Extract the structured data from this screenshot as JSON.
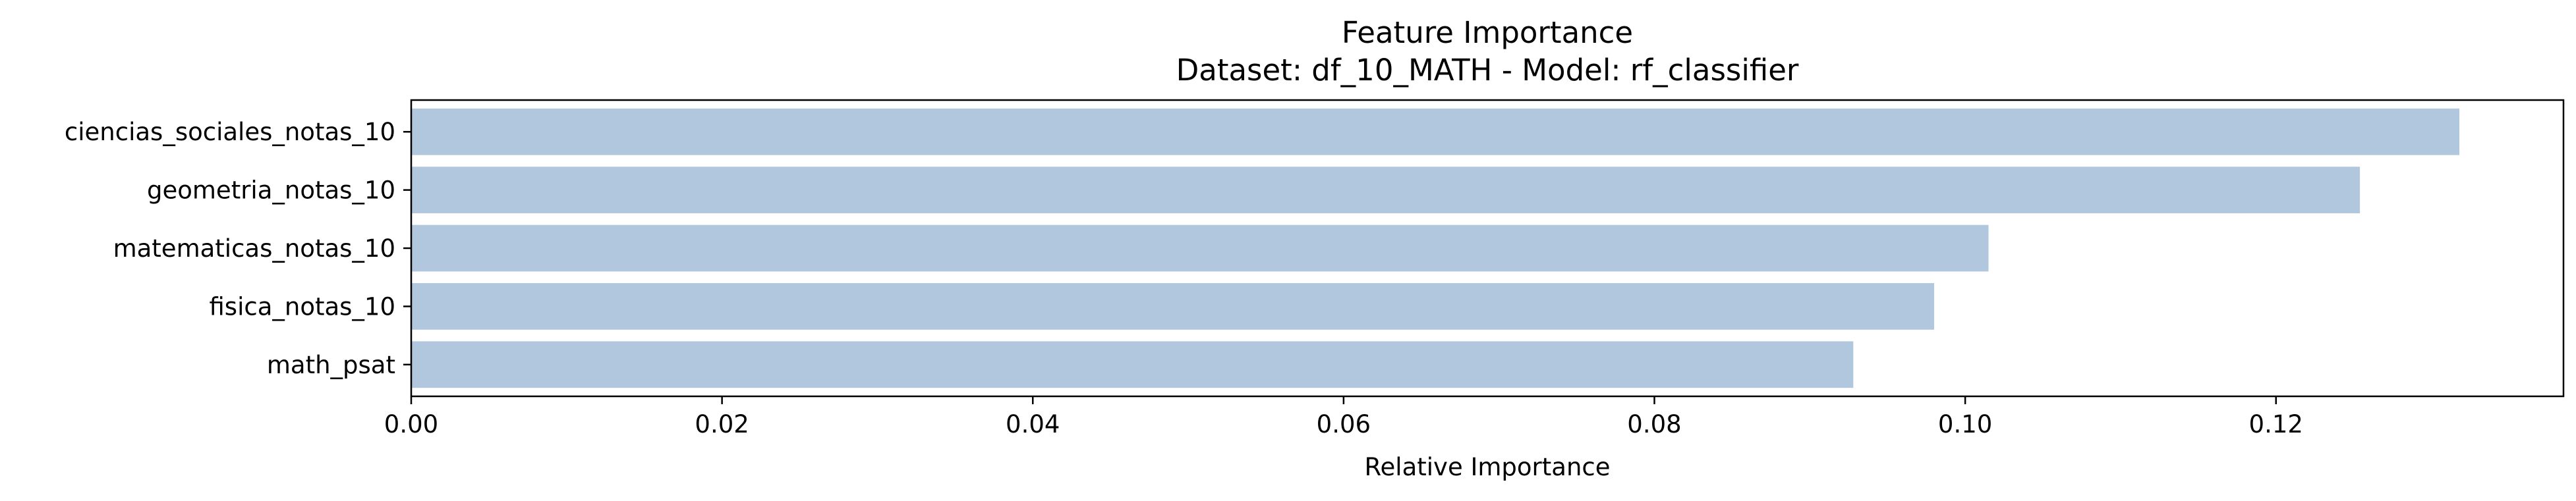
{
  "chart_data": {
    "type": "bar",
    "orientation": "horizontal",
    "title": "Feature Importance",
    "subtitle": "Dataset: df_10_MATH  -  Model: rf_classifier",
    "xlabel": "Relative Importance",
    "ylabel": "",
    "categories": [
      "ciencias_sociales_notas_10",
      "geometria_notas_10",
      "matematicas_notas_10",
      "fisica_notas_10",
      "math_psat"
    ],
    "values": [
      0.1318,
      0.1254,
      0.1015,
      0.098,
      0.0928
    ],
    "xlim": [
      0,
      0.1385
    ],
    "xticks": [
      0.0,
      0.02,
      0.04,
      0.06,
      0.08,
      0.1,
      0.12
    ],
    "xtick_labels": [
      "0.00",
      "0.02",
      "0.04",
      "0.06",
      "0.08",
      "0.10",
      "0.12"
    ],
    "bar_color": "#b0c7de",
    "grid": false,
    "legend": false
  }
}
